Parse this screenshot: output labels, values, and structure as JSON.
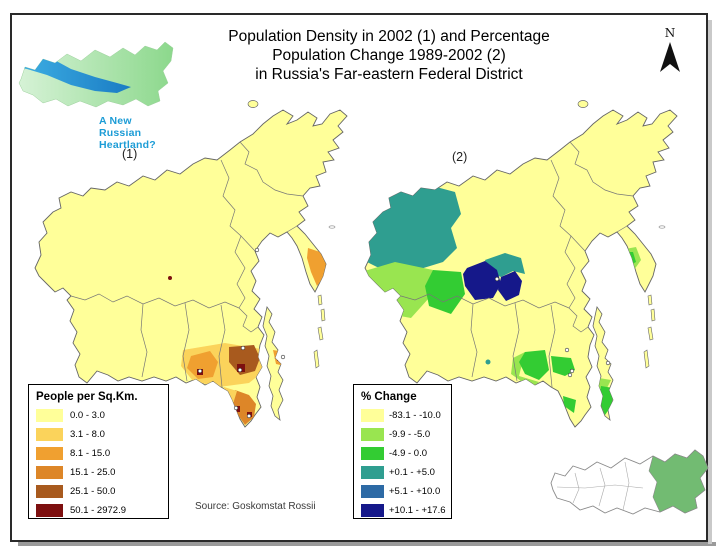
{
  "logo": {
    "line1": "A New Russian",
    "line2": "Heartland?",
    "text_color": "#1C9CD6",
    "green_light": "#D6F2D6",
    "green_dark": "#8CD88C",
    "blue_light": "#3FB0E4",
    "blue_dark": "#1A7CC4"
  },
  "title": {
    "line1": "Population Density in 2002 (1) and Percentage",
    "line2": "Population Change 1989-2002 (2)",
    "line3": "in Russia's Far-eastern Federal District"
  },
  "north_label": "N",
  "labels": {
    "map1": "(1)",
    "map2": "(2)"
  },
  "legend1": {
    "title": "People per Sq.Km.",
    "entries": [
      {
        "color": "#FFFF99",
        "label": "0.0 - 3.0"
      },
      {
        "color": "#FBD35B",
        "label": "3.1 - 8.0"
      },
      {
        "color": "#F0A030",
        "label": "8.1 - 15.0"
      },
      {
        "color": "#DD8628",
        "label": "15.1 - 25.0"
      },
      {
        "color": "#A85A1E",
        "label": "25.1 - 50.0"
      },
      {
        "color": "#7D0F0F",
        "label": "50.1 - 2972.9"
      }
    ]
  },
  "legend2": {
    "title": "% Change",
    "entries": [
      {
        "color": "#FFFF99",
        "label": "-83.1 - -10.0"
      },
      {
        "color": "#99E550",
        "label": "-9.9 - -5.0"
      },
      {
        "color": "#33CC33",
        "label": "-4.9 - 0.0"
      },
      {
        "color": "#2F9E90",
        "label": "+0.1 - +5.0"
      },
      {
        "color": "#2D6AA5",
        "label": "+5.1 - +10.0"
      },
      {
        "color": "#15188A",
        "label": "+10.1 - +17.6"
      }
    ]
  },
  "source": "Source: Goskomstat Rossii",
  "colors": {
    "map_base": "#FFFF99",
    "map_stroke": "#666666",
    "inset_highlight": "#72BB72",
    "inset_stroke": "#8a8a8a"
  }
}
